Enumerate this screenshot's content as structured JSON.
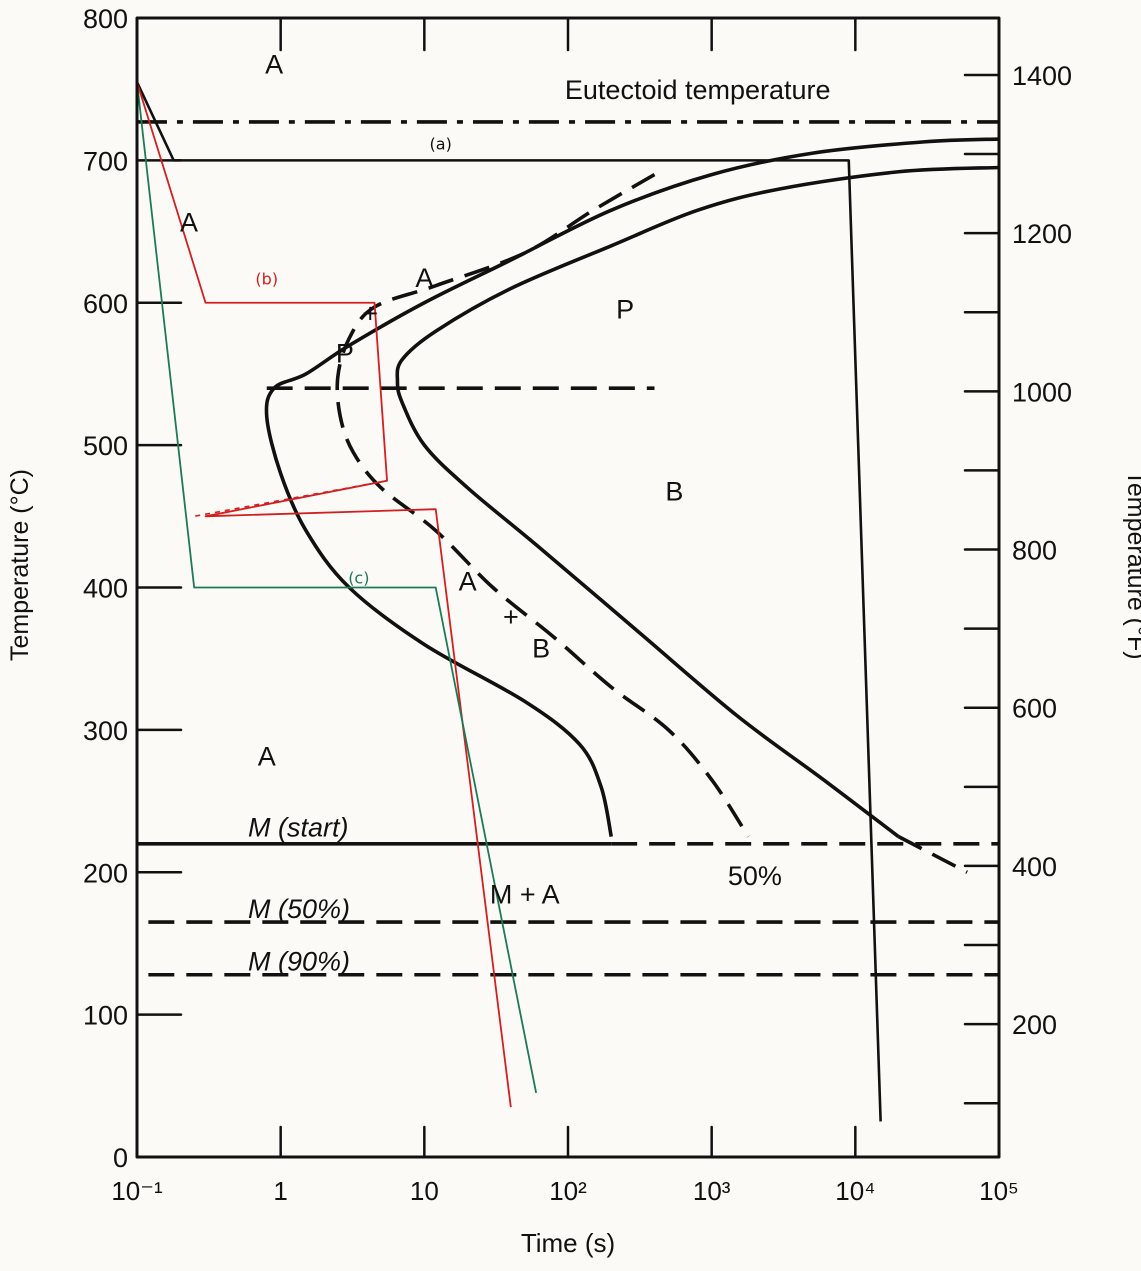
{
  "chart_data": {
    "type": "line",
    "title": "",
    "xlabel": "Time (s)",
    "ylabel": "Temperature (°C)",
    "y2label": "Temperature (°F)",
    "x_scale": "log",
    "xlim": [
      0.1,
      100000
    ],
    "ylim": [
      0,
      800
    ],
    "y2lim": [
      32,
      1472
    ],
    "grid": false,
    "x_ticks": [
      {
        "value": 0.1,
        "label": "10⁻¹"
      },
      {
        "value": 1,
        "label": "1"
      },
      {
        "value": 10,
        "label": "10"
      },
      {
        "value": 100,
        "label": "10²"
      },
      {
        "value": 1000,
        "label": "10³"
      },
      {
        "value": 10000,
        "label": "10⁴"
      },
      {
        "value": 100000,
        "label": "10⁵"
      }
    ],
    "y_ticks": [
      {
        "value": 0,
        "label": "0"
      },
      {
        "value": 100,
        "label": "100"
      },
      {
        "value": 200,
        "label": "200"
      },
      {
        "value": 300,
        "label": "300"
      },
      {
        "value": 400,
        "label": "400"
      },
      {
        "value": 500,
        "label": "500"
      },
      {
        "value": 600,
        "label": "600"
      },
      {
        "value": 700,
        "label": "700"
      },
      {
        "value": 800,
        "label": "800"
      }
    ],
    "y2_ticks": [
      {
        "value": 200,
        "label": "200"
      },
      {
        "value": 400,
        "label": "400"
      },
      {
        "value": 600,
        "label": "600"
      },
      {
        "value": 800,
        "label": "800"
      },
      {
        "value": 1000,
        "label": "1000"
      },
      {
        "value": 1200,
        "label": "1200"
      },
      {
        "value": 1400,
        "label": "1400"
      }
    ],
    "series": [
      {
        "key": "start",
        "style": "solid",
        "points": [
          [
            100000,
            715
          ],
          [
            30000,
            713
          ],
          [
            5000,
            705
          ],
          [
            1000,
            690
          ],
          [
            200,
            665
          ],
          [
            40,
            630
          ],
          [
            10,
            600
          ],
          [
            3,
            570
          ],
          [
            1.5,
            550
          ],
          [
            0.9,
            540
          ],
          [
            0.8,
            520
          ],
          [
            1,
            480
          ],
          [
            1.5,
            440
          ],
          [
            3,
            400
          ],
          [
            10,
            360
          ],
          [
            50,
            320
          ],
          [
            120,
            290
          ],
          [
            170,
            260
          ],
          [
            200,
            225
          ]
        ]
      },
      {
        "key": "mid",
        "style": "dashed",
        "points": [
          [
            400,
            690
          ],
          [
            150,
            665
          ],
          [
            50,
            635
          ],
          [
            12,
            612
          ],
          [
            4.5,
            597
          ],
          [
            3,
            575
          ],
          [
            2.5,
            548
          ],
          [
            2.6,
            520
          ],
          [
            3.2,
            495
          ],
          [
            5,
            470
          ],
          [
            12,
            440
          ],
          [
            30,
            400
          ],
          [
            80,
            365
          ],
          [
            200,
            330
          ],
          [
            500,
            300
          ],
          [
            1000,
            265
          ],
          [
            1800,
            225
          ]
        ]
      },
      {
        "key": "finish",
        "style": "solid",
        "points": [
          [
            100000,
            695
          ],
          [
            20000,
            692
          ],
          [
            3000,
            680
          ],
          [
            800,
            665
          ],
          [
            200,
            640
          ],
          [
            40,
            610
          ],
          [
            12,
            580
          ],
          [
            7,
            560
          ],
          [
            6.5,
            545
          ],
          [
            7,
            530
          ],
          [
            10,
            500
          ],
          [
            20,
            470
          ],
          [
            60,
            430
          ],
          [
            300,
            370
          ],
          [
            1500,
            310
          ],
          [
            6000,
            265
          ],
          [
            20000,
            225
          ]
        ]
      },
      {
        "key": "finish_tail",
        "style": "dashed",
        "points": [
          [
            20000,
            225
          ],
          [
            60000,
            200
          ]
        ]
      },
      {
        "key": "eutectoid",
        "style": "dashdot",
        "points": [
          [
            0.1,
            727
          ],
          [
            100000,
            727
          ]
        ]
      },
      {
        "key": "m_start",
        "style": "solid",
        "points": [
          [
            0.1,
            220
          ],
          [
            200,
            220
          ]
        ]
      },
      {
        "key": "m_start_ext",
        "style": "dashed",
        "points": [
          [
            200,
            220
          ],
          [
            100000,
            220
          ]
        ]
      },
      {
        "key": "m_50",
        "style": "dashed",
        "points": [
          [
            0.12,
            165
          ],
          [
            100000,
            165
          ]
        ]
      },
      {
        "key": "m_90",
        "style": "dashed",
        "points": [
          [
            0.12,
            128
          ],
          [
            100000,
            128
          ]
        ]
      },
      {
        "key": "bay",
        "style": "dashed",
        "points": [
          [
            0.8,
            540
          ],
          [
            400,
            540
          ]
        ]
      },
      {
        "key": "path_a",
        "style": "solid",
        "color": "#111111",
        "points": [
          [
            0.1,
            755
          ],
          [
            0.18,
            700
          ],
          [
            9000,
            700
          ],
          [
            15000,
            25
          ]
        ]
      },
      {
        "key": "path_b",
        "style": "solid",
        "color": "#d21f1f",
        "points": [
          [
            0.1,
            755
          ],
          [
            0.3,
            600
          ],
          [
            4.5,
            600
          ],
          [
            5.5,
            475
          ],
          [
            0.3,
            450
          ],
          [
            12,
            455
          ],
          [
            40,
            35
          ]
        ]
      },
      {
        "key": "path_b_dot",
        "style": "dotted",
        "color": "#d21f1f",
        "points": [
          [
            5.5,
            475
          ],
          [
            0.25,
            450
          ]
        ]
      },
      {
        "key": "path_c",
        "style": "solid",
        "color": "#1d7a55",
        "points": [
          [
            0.1,
            755
          ],
          [
            0.25,
            400
          ],
          [
            12,
            400
          ],
          [
            60,
            45
          ]
        ]
      }
    ],
    "annotations": [
      {
        "text": "A",
        "x": 0.9,
        "y": 768
      },
      {
        "text": "Eutectoid temperature",
        "x": 800,
        "y": 750
      },
      {
        "text": "A",
        "x": 0.23,
        "y": 657
      },
      {
        "text": "A",
        "x": 10,
        "y": 618
      },
      {
        "text": "P",
        "x": 250,
        "y": 596
      },
      {
        "text": "+",
        "x": 4.2,
        "y": 593
      },
      {
        "text": "P",
        "x": 2.8,
        "y": 565
      },
      {
        "text": "B",
        "x": 550,
        "y": 468
      },
      {
        "text": "A",
        "x": 20,
        "y": 405
      },
      {
        "text": "+",
        "x": 40,
        "y": 380
      },
      {
        "text": "B",
        "x": 65,
        "y": 358
      },
      {
        "text": "A",
        "x": 0.8,
        "y": 282
      },
      {
        "text": "50%",
        "x": 2000,
        "y": 198
      },
      {
        "text": "M + A",
        "x": 50,
        "y": 185
      },
      {
        "text": "M (start)",
        "x": 1.2,
        "y": 232
      },
      {
        "text": "M (50%)",
        "x": 1.2,
        "y": 175
      },
      {
        "text": "M (90%)",
        "x": 1.2,
        "y": 138
      }
    ],
    "handwritten": [
      {
        "text": "(a)",
        "x": 13,
        "y": 712,
        "color": "#111111"
      },
      {
        "text": "(b)",
        "x": 0.8,
        "y": 617,
        "color": "#d21f1f"
      },
      {
        "text": "(c)",
        "x": 3.5,
        "y": 407,
        "color": "#1d7a55"
      }
    ]
  }
}
